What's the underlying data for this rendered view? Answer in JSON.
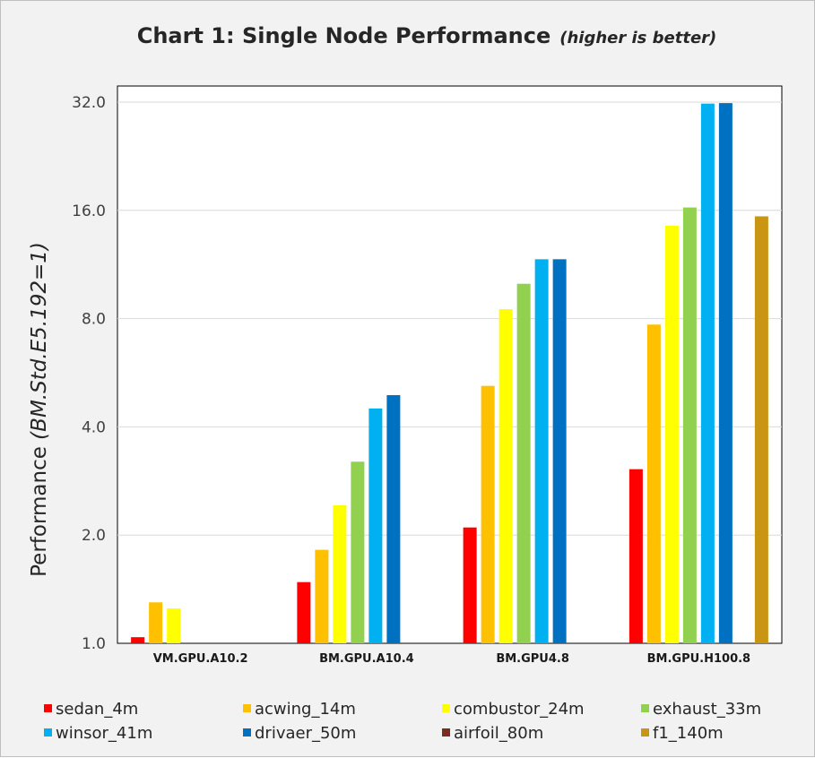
{
  "chart_data": {
    "type": "bar",
    "title": "Chart 1: Single Node Performance",
    "subtitle": "(higher is better)",
    "ylabel_prefix": "Performance ",
    "ylabel_italic": "(BM.Std.E5.192=1)",
    "xlabel": "",
    "yscale": "log2",
    "ylim": [
      1,
      36
    ],
    "yticks": [
      "1.0",
      "2.0",
      "4.0",
      "8.0",
      "16.0",
      "32.0"
    ],
    "grid": true,
    "legend_position": "bottom",
    "categories": [
      "VM.GPU.A10.2",
      "BM.GPU.A10.4",
      "BM.GPU4.8",
      "BM.GPU.H100.8"
    ],
    "series": [
      {
        "name": "sedan_4m",
        "color": "#ff0000",
        "values": [
          1.04,
          1.48,
          2.1,
          3.05
        ]
      },
      {
        "name": "acwing_14m",
        "color": "#ffc000",
        "values": [
          1.3,
          1.82,
          5.2,
          7.7
        ]
      },
      {
        "name": "combustor_24m",
        "color": "#ffff00",
        "values": [
          1.25,
          2.42,
          8.5,
          14.5
        ]
      },
      {
        "name": "exhaust_33m",
        "color": "#92d050",
        "values": [
          null,
          3.2,
          10.0,
          16.3
        ]
      },
      {
        "name": "winsor_41m",
        "color": "#00b0f0",
        "values": [
          null,
          4.5,
          11.7,
          31.7
        ]
      },
      {
        "name": "drivaer_50m",
        "color": "#0070c0",
        "values": [
          null,
          4.9,
          11.7,
          31.8
        ]
      },
      {
        "name": "airfoil_80m",
        "color": "#7b2c1e",
        "values": [
          null,
          null,
          null,
          null
        ]
      },
      {
        "name": "f1_140m",
        "color": "#c99512",
        "values": [
          null,
          null,
          null,
          15.4
        ]
      }
    ]
  }
}
